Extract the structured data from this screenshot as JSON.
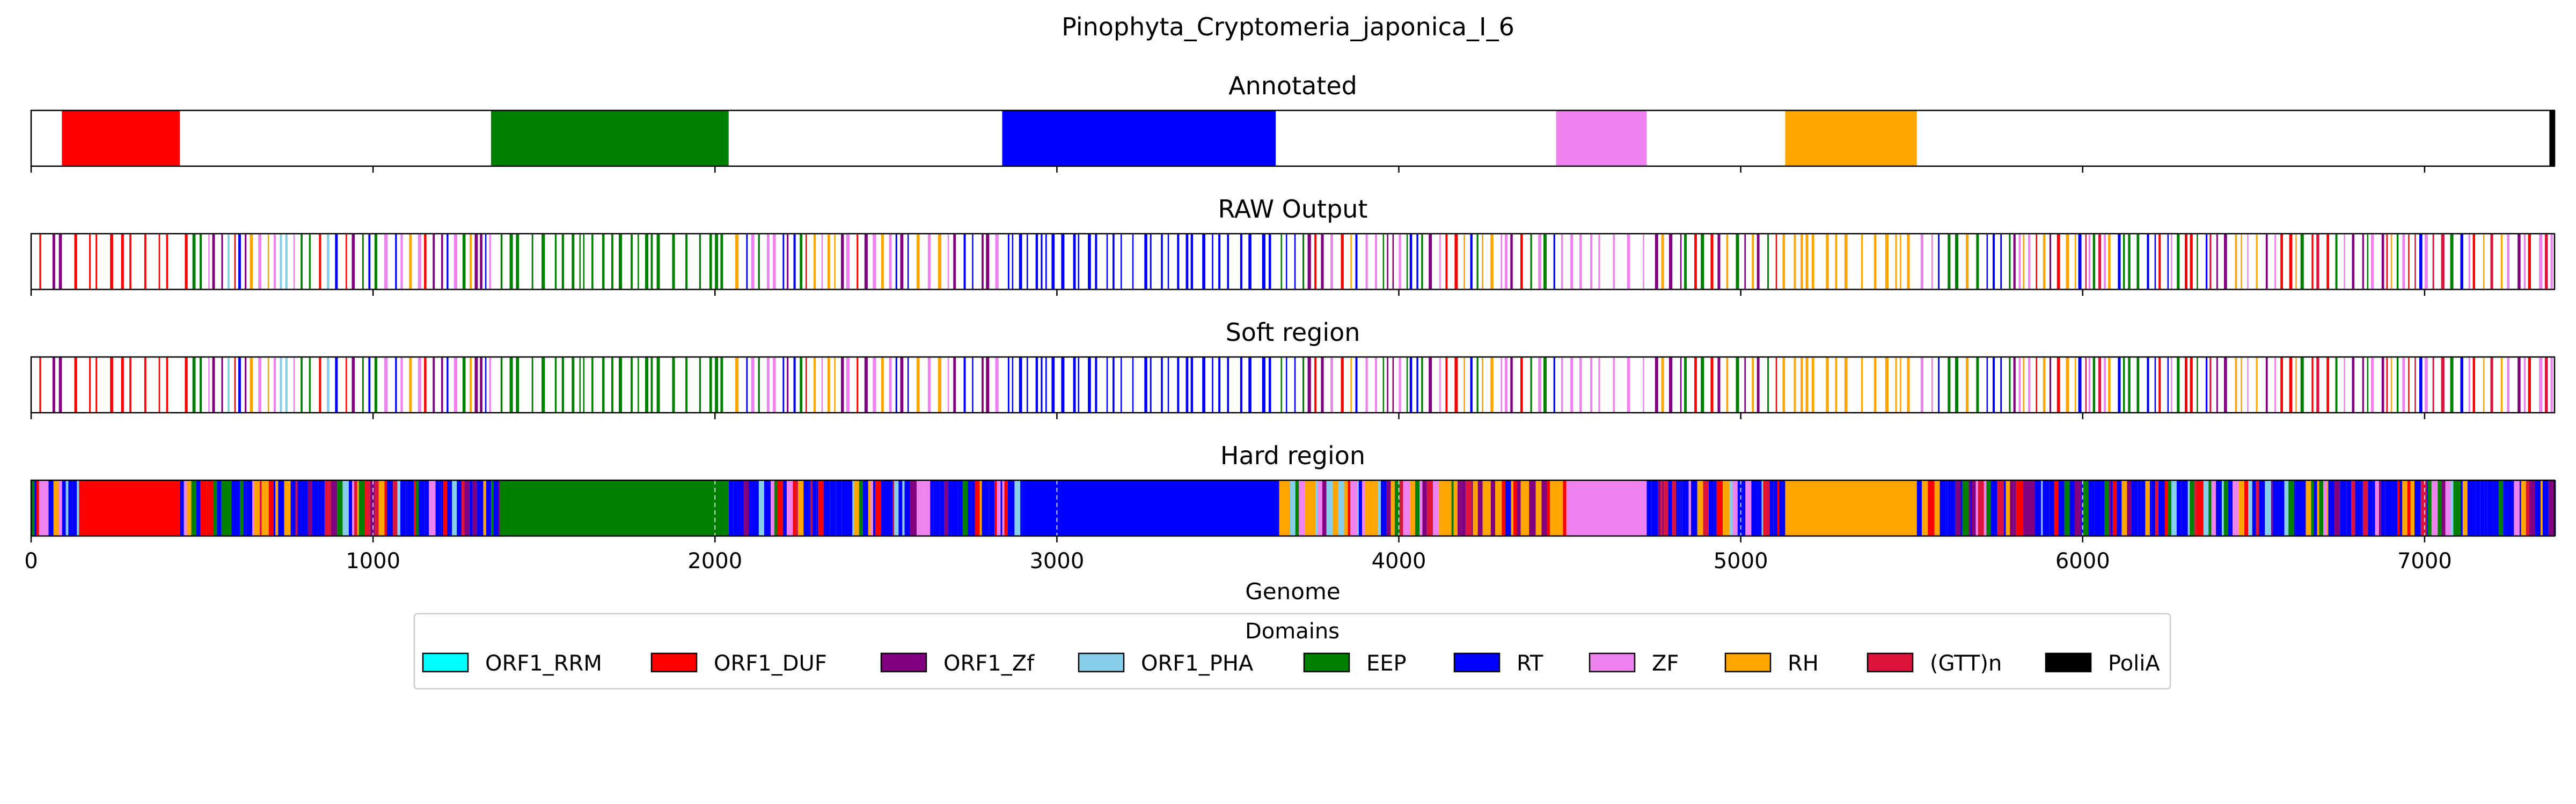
{
  "chart_data": {
    "type": "genome-domain-tracks",
    "title": "Pinophyta_Cryptomeria_japonica_I_6",
    "xlabel": "Genome",
    "xlim": [
      0,
      7380
    ],
    "xticks": [
      0,
      1000,
      2000,
      3000,
      4000,
      5000,
      6000,
      7000
    ],
    "xtick_labels": [
      "0",
      "1000",
      "2000",
      "3000",
      "4000",
      "5000",
      "6000",
      "7000"
    ],
    "colors": {
      "ORF1_RRM": "#00ffff",
      "ORF1_DUF": "#ff0000",
      "ORF1_Zf": "#800080",
      "ORF1_PHA": "#87ceeb",
      "EEP": "#008000",
      "RT": "#0000ff",
      "ZF": "#ee82ee",
      "RH": "#ffa500",
      "(GTT)n": "#dc143c",
      "PoliA": "#000000"
    },
    "legend": {
      "title": "Domains",
      "placement": "bottom-center",
      "entries": [
        "ORF1_RRM",
        "ORF1_DUF",
        "ORF1_Zf",
        "ORF1_PHA",
        "EEP",
        "RT",
        "ZF",
        "RH",
        "(GTT)n",
        "PoliA"
      ]
    },
    "tracks": [
      {
        "name": "Annotated",
        "segments": [
          {
            "domain": "ORF1_DUF",
            "start": 90,
            "end": 435
          },
          {
            "domain": "EEP",
            "start": 1345,
            "end": 2040
          },
          {
            "domain": "RT",
            "start": 2840,
            "end": 3640
          },
          {
            "domain": "ZF",
            "start": 4460,
            "end": 4725
          },
          {
            "domain": "RH",
            "start": 5130,
            "end": 5515
          },
          {
            "domain": "PoliA",
            "start": 7365,
            "end": 7380
          }
        ]
      },
      {
        "name": "RAW Output",
        "style": "stripes",
        "regions": [
          {
            "start": 0,
            "end": 90,
            "mix": [
              "RT",
              "ORF1_DUF",
              "ORF1_Zf"
            ],
            "density": 0.08
          },
          {
            "start": 90,
            "end": 435,
            "mix": [
              "ORF1_DUF"
            ],
            "density": 0.06
          },
          {
            "start": 435,
            "end": 1345,
            "mix": [
              "RT",
              "ORF1_DUF",
              "ORF1_Zf",
              "RH",
              "ZF",
              "EEP",
              "ORF1_PHA"
            ],
            "density": 0.12
          },
          {
            "start": 1345,
            "end": 2040,
            "mix": [
              "EEP"
            ],
            "density": 0.07
          },
          {
            "start": 2040,
            "end": 2840,
            "mix": [
              "RT",
              "ORF1_DUF",
              "ORF1_Zf",
              "RH",
              "ZF",
              "EEP"
            ],
            "density": 0.12
          },
          {
            "start": 2840,
            "end": 3640,
            "mix": [
              "RT"
            ],
            "density": 0.08
          },
          {
            "start": 3640,
            "end": 4460,
            "mix": [
              "RT",
              "ORF1_DUF",
              "ORF1_Zf",
              "RH",
              "ZF",
              "EEP"
            ],
            "density": 0.12
          },
          {
            "start": 4460,
            "end": 4725,
            "mix": [
              "ZF"
            ],
            "density": 0.05
          },
          {
            "start": 4725,
            "end": 5130,
            "mix": [
              "RT",
              "ORF1_DUF",
              "RH",
              "EEP",
              "ORF1_Zf"
            ],
            "density": 0.12
          },
          {
            "start": 5130,
            "end": 5515,
            "mix": [
              "RH"
            ],
            "density": 0.06
          },
          {
            "start": 5515,
            "end": 7380,
            "mix": [
              "RT",
              "ORF1_DUF",
              "ORF1_Zf",
              "RH",
              "ZF",
              "EEP",
              "(GTT)n"
            ],
            "density": 0.12
          }
        ]
      },
      {
        "name": "Soft region",
        "style": "stripes",
        "same_as": "RAW Output"
      },
      {
        "name": "Hard region",
        "style": "dense",
        "segments": [
          {
            "domain": "RT",
            "start": 0,
            "end": 140,
            "mix": true
          },
          {
            "domain": "ORF1_DUF",
            "start": 140,
            "end": 435
          },
          {
            "domain": "RT",
            "start": 435,
            "end": 1370,
            "mix": true
          },
          {
            "domain": "EEP",
            "start": 1370,
            "end": 2040
          },
          {
            "domain": "RT",
            "start": 2040,
            "end": 2900,
            "mix": true
          },
          {
            "domain": "RT",
            "start": 2900,
            "end": 3650
          },
          {
            "domain": "RH",
            "start": 3650,
            "end": 4490,
            "mix": true
          },
          {
            "domain": "ZF",
            "start": 4490,
            "end": 4725
          },
          {
            "domain": "RT",
            "start": 4725,
            "end": 5130,
            "mix": true
          },
          {
            "domain": "RH",
            "start": 5130,
            "end": 5515
          },
          {
            "domain": "RT",
            "start": 5515,
            "end": 7380,
            "mix": true
          }
        ]
      }
    ]
  }
}
